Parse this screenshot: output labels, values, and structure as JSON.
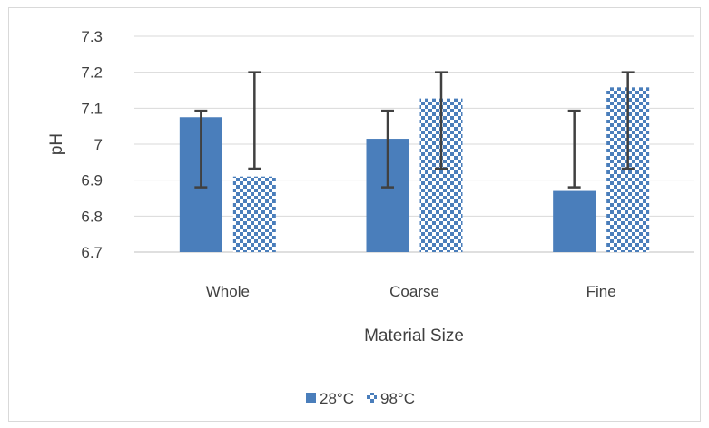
{
  "chart_data": {
    "type": "bar",
    "categories": [
      "Whole",
      "Coarse",
      "Fine"
    ],
    "series": [
      {
        "name": "28°C",
        "values": [
          7.075,
          7.015,
          6.87
        ],
        "err_low": [
          6.88,
          6.88,
          6.88
        ],
        "err_high": [
          7.093,
          7.093,
          7.093
        ],
        "color": "#4a7ebb",
        "pattern": "solid"
      },
      {
        "name": "98°C",
        "values": [
          6.91,
          7.127,
          7.158
        ],
        "err_low": [
          6.932,
          6.932,
          6.932
        ],
        "err_high": [
          7.2,
          7.2,
          7.2
        ],
        "color": "#4a7ebb",
        "pattern": "dotted-check"
      }
    ],
    "xlabel": "Material Size",
    "ylabel": "pH",
    "ylim": [
      6.7,
      7.3
    ],
    "yticks": [
      "6.7",
      "6.8",
      "6.9",
      "7",
      "7.1",
      "7.2",
      "7.3"
    ],
    "grid": true,
    "legend": "bottom"
  }
}
